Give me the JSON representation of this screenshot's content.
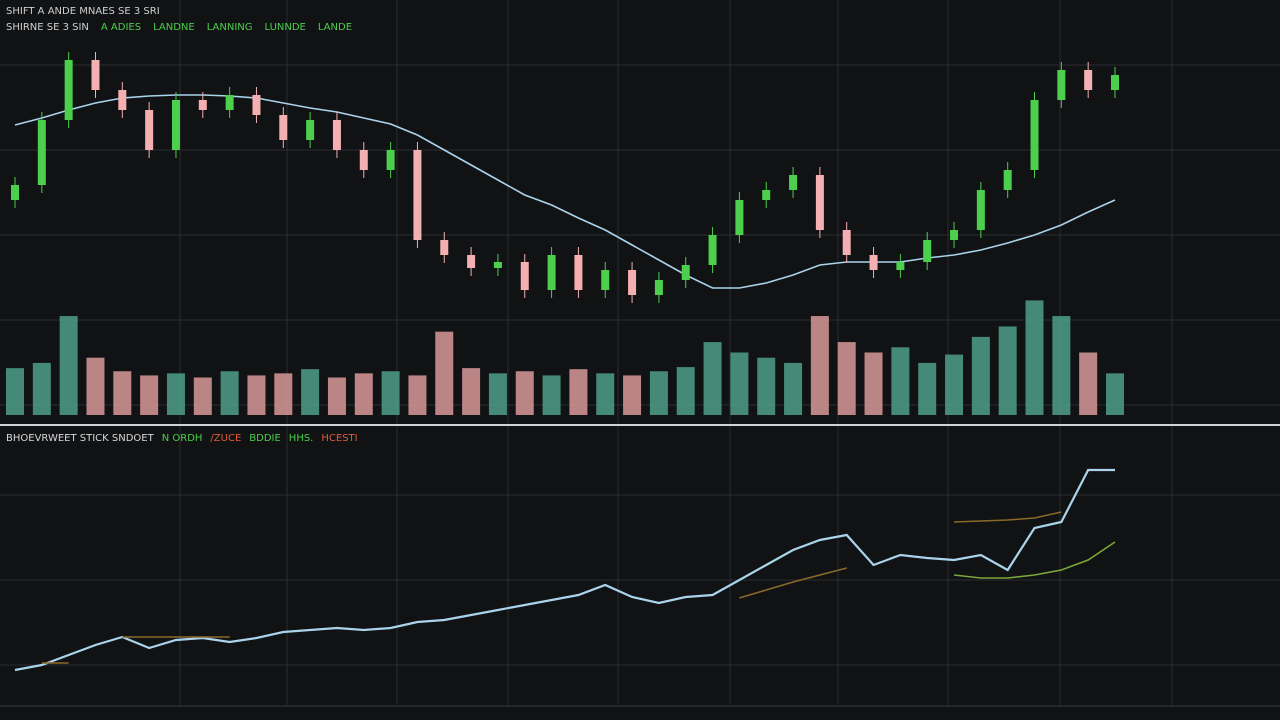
{
  "chart_data": [
    {
      "type": "candlestick",
      "title": "SHIFT A ANDE MNAES SE 3 SRI",
      "legend_texts": [
        "SHIRNE SE 3 SIN",
        "A ADIES",
        "LANDNE",
        "LANNING",
        "LUNNDE",
        "LANDE"
      ],
      "up_color": "#4ccf4c",
      "down_color": "#f4b0b0",
      "ma_color": "#a9d4ec",
      "ylim": [
        0,
        100
      ],
      "volume_lim": [
        0,
        120
      ],
      "open": [
        55,
        58.75,
        75,
        90,
        82.5,
        77.5,
        67.5,
        80,
        77.5,
        81.25,
        76.25,
        70,
        75,
        67.5,
        62.5,
        67.5,
        45,
        41.25,
        38,
        39.5,
        32.5,
        41.25,
        32.5,
        37.5,
        31.25,
        35,
        38.75,
        46.25,
        55,
        57.5,
        61.25,
        47.5,
        41.25,
        37.5,
        39.5,
        45,
        47.5,
        57.5,
        62.5,
        80,
        87.5,
        82.5
      ],
      "high": [
        60.75,
        77,
        92,
        92,
        84.5,
        79.5,
        82,
        82,
        83.25,
        83.25,
        78.25,
        77,
        77,
        69.5,
        69.5,
        69.5,
        47,
        43.25,
        41.5,
        41.5,
        43.25,
        43.25,
        39.5,
        39.5,
        37,
        40.75,
        48.25,
        57,
        59.5,
        63.25,
        63.25,
        49.5,
        43.25,
        41.5,
        47,
        49.5,
        59.5,
        64.5,
        82,
        89.5,
        89.5,
        88.25
      ],
      "low": [
        53,
        56.75,
        73,
        80.5,
        75.5,
        65.5,
        65.5,
        75.5,
        75.5,
        74.25,
        68,
        68,
        65.5,
        60.5,
        60.5,
        43,
        39.25,
        36,
        36,
        30.5,
        30.5,
        30.5,
        30.5,
        29.25,
        29.25,
        33,
        36.75,
        44.25,
        53,
        55.5,
        45.5,
        39.25,
        35.5,
        35.5,
        37.5,
        43,
        45.5,
        55.5,
        60.5,
        78,
        80.5,
        80.5
      ],
      "close": [
        58.75,
        75,
        90,
        82.5,
        77.5,
        67.5,
        80,
        77.5,
        81.25,
        76.25,
        70,
        75,
        67.5,
        62.5,
        67.5,
        45,
        41.25,
        38,
        39.5,
        32.5,
        41.25,
        32.5,
        37.5,
        31.25,
        35,
        38.75,
        46.25,
        55,
        57.5,
        61.25,
        47.5,
        41.25,
        37.5,
        39.5,
        45,
        47.5,
        57.5,
        62.5,
        80,
        87.5,
        82.5,
        86.25
      ],
      "volume": [
        45,
        50,
        95,
        55,
        42,
        38,
        40,
        36,
        42,
        38,
        40,
        44,
        36,
        40,
        42,
        38,
        80,
        45,
        40,
        42,
        38,
        44,
        40,
        38,
        42,
        46,
        70,
        60,
        55,
        50,
        95,
        70,
        60,
        65,
        50,
        58,
        75,
        85,
        110,
        95,
        60,
        40
      ],
      "ma": [
        73.75,
        75.5,
        77.5,
        79.25,
        80.5,
        81,
        81.25,
        81.25,
        81,
        80.5,
        79.25,
        78,
        77,
        75.5,
        74,
        71.25,
        67.5,
        63.75,
        60,
        56.25,
        53.75,
        50.5,
        47.5,
        43.75,
        40,
        36.25,
        33,
        33,
        34.25,
        36.25,
        38.75,
        39.5,
        39.5,
        39.5,
        40.5,
        41.25,
        42.5,
        44.25,
        46.25,
        48.75,
        52,
        55
      ]
    },
    {
      "type": "line",
      "legend_texts": [
        {
          "text": "BHOEVRWEET STICK SNDOET",
          "color": "#d8d8d8"
        },
        {
          "text": "N ORDH",
          "color": "#4ccf4c"
        },
        {
          "text": "/ZUCE",
          "color": "#e05a3a"
        },
        {
          "text": "BDDIE",
          "color": "#4ccf4c"
        },
        {
          "text": "HHS.",
          "color": "#4ccf4c"
        },
        {
          "text": "HCESTI",
          "color": "#e05a3a"
        }
      ],
      "ylim": [
        0,
        260
      ],
      "series": [
        {
          "color": "#a9d4ec",
          "values": [
            30,
            35,
            45,
            55,
            63,
            52,
            60,
            62,
            58,
            62,
            68,
            70,
            72,
            70,
            72,
            78,
            80,
            85,
            90,
            95,
            100,
            105,
            115,
            103,
            97,
            103,
            105,
            120,
            135,
            150,
            160,
            165,
            135,
            145,
            142,
            140,
            145,
            130,
            172,
            178,
            230,
            230
          ]
        },
        {
          "color": "#8a6a2a",
          "values": [
            null,
            37,
            37,
            null,
            63,
            63,
            63,
            63,
            63,
            null,
            null,
            null,
            null,
            null,
            null,
            null,
            null,
            null,
            null,
            null,
            null,
            null,
            null,
            null,
            null,
            null,
            null,
            102,
            110,
            118,
            125,
            132,
            null,
            null,
            null,
            178,
            179,
            180,
            182,
            188,
            null,
            null
          ]
        },
        {
          "color": "#7aa83a",
          "values": [
            null,
            null,
            null,
            null,
            null,
            null,
            null,
            null,
            null,
            null,
            null,
            null,
            null,
            null,
            null,
            null,
            null,
            null,
            null,
            null,
            null,
            null,
            null,
            null,
            null,
            null,
            null,
            null,
            null,
            null,
            null,
            null,
            null,
            null,
            null,
            125,
            122,
            122,
            125,
            130,
            140,
            158
          ]
        }
      ]
    }
  ]
}
